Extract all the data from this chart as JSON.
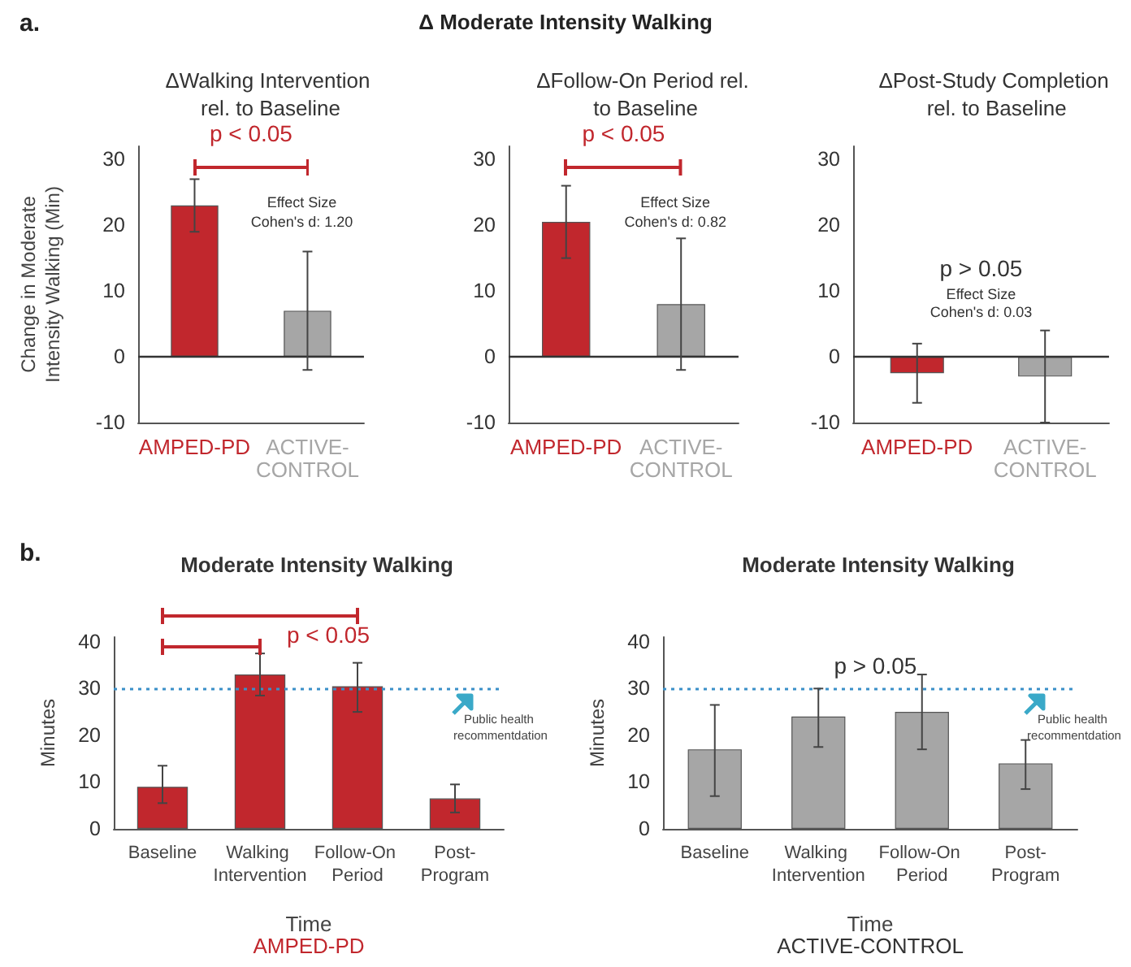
{
  "chart_data": [
    {
      "type": "bar",
      "title": "ΔWalking Intervention rel. to Baseline",
      "ylabel": "Change in Moderate Intensity Walking (Min)",
      "categories": [
        "AMPED-PD",
        "ACTIVE-CONTROL"
      ],
      "values": [
        23,
        7
      ],
      "colors": [
        "#c1272d",
        "#a6a6a6"
      ],
      "errors": [
        [
          19,
          27
        ],
        [
          -2,
          16
        ]
      ],
      "ylim": [
        -10,
        32
      ],
      "yticks": [
        -10,
        0,
        10,
        20,
        30
      ],
      "ref_lines": [
        {
          "axis": "y",
          "value": 0,
          "color": "#333333",
          "line_style": "solid"
        }
      ],
      "annotations": [
        "a.",
        "Δ Moderate Intensity Walking",
        "p < 0.05",
        "Effect Size",
        "Cohen's d: 1.20"
      ]
    },
    {
      "type": "bar",
      "title": "ΔFollow-On Period rel. to Baseline",
      "categories": [
        "AMPED-PD",
        "ACTIVE-CONTROL"
      ],
      "values": [
        20.5,
        8
      ],
      "colors": [
        "#c1272d",
        "#a6a6a6"
      ],
      "errors": [
        [
          15,
          26
        ],
        [
          -2,
          18
        ]
      ],
      "ylim": [
        -10,
        32
      ],
      "yticks": [
        -10,
        0,
        10,
        20,
        30
      ],
      "ref_lines": [
        {
          "axis": "y",
          "value": 0,
          "color": "#333333",
          "line_style": "solid"
        }
      ],
      "annotations": [
        "p < 0.05",
        "Effect Size",
        "Cohen's d: 0.82"
      ]
    },
    {
      "type": "bar",
      "title": "ΔPost-Study Completion rel. to Baseline",
      "categories": [
        "AMPED-PD",
        "ACTIVE-CONTROL"
      ],
      "values": [
        -2.5,
        -3
      ],
      "colors": [
        "#c1272d",
        "#a6a6a6"
      ],
      "errors": [
        [
          -7,
          2
        ],
        [
          -10,
          4
        ]
      ],
      "ylim": [
        -10,
        32
      ],
      "yticks": [
        -10,
        0,
        10,
        20,
        30
      ],
      "ref_lines": [
        {
          "axis": "y",
          "value": 0,
          "color": "#333333",
          "line_style": "solid"
        }
      ],
      "annotations": [
        "p > 0.05",
        "Effect Size",
        "Cohen's d: 0.03"
      ]
    },
    {
      "type": "bar",
      "title": "Moderate Intensity Walking",
      "xlabel": "Time",
      "ylabel": "Minutes",
      "categories": [
        "Baseline",
        "Walking Intervention",
        "Follow-On Period",
        "Post-Program"
      ],
      "values": [
        9,
        33,
        30.5,
        6.5
      ],
      "color": "#c1272d",
      "errors": [
        [
          5.5,
          13.5
        ],
        [
          28.5,
          37.5
        ],
        [
          25,
          35.5
        ],
        [
          3.5,
          9.5
        ]
      ],
      "ylim": [
        0,
        41
      ],
      "yticks": [
        0,
        10,
        20,
        30,
        40
      ],
      "ref_lines": [
        {
          "axis": "y",
          "value": 30,
          "label": "Public health recommentdation",
          "color": "#3a8fc8",
          "line_style": "dotted"
        }
      ],
      "annotations": [
        "b.",
        "p < 0.05",
        "AMPED-PD"
      ]
    },
    {
      "type": "bar",
      "title": "Moderate Intensity Walking",
      "xlabel": "Time",
      "ylabel": "Minutes",
      "categories": [
        "Baseline",
        "Walking Intervention",
        "Follow-On Period",
        "Post-Program"
      ],
      "values": [
        17,
        24,
        25,
        14
      ],
      "color": "#a6a6a6",
      "errors": [
        [
          7,
          26.5
        ],
        [
          17.5,
          30
        ],
        [
          17,
          33
        ],
        [
          8.5,
          19
        ]
      ],
      "ylim": [
        0,
        41
      ],
      "yticks": [
        0,
        10,
        20,
        30,
        40
      ],
      "ref_lines": [
        {
          "axis": "y",
          "value": 30,
          "label": "Public health recommentdation",
          "color": "#3a8fc8",
          "line_style": "dotted"
        }
      ],
      "annotations": [
        "p > 0.05",
        "ACTIVE-CONTROL"
      ]
    }
  ]
}
